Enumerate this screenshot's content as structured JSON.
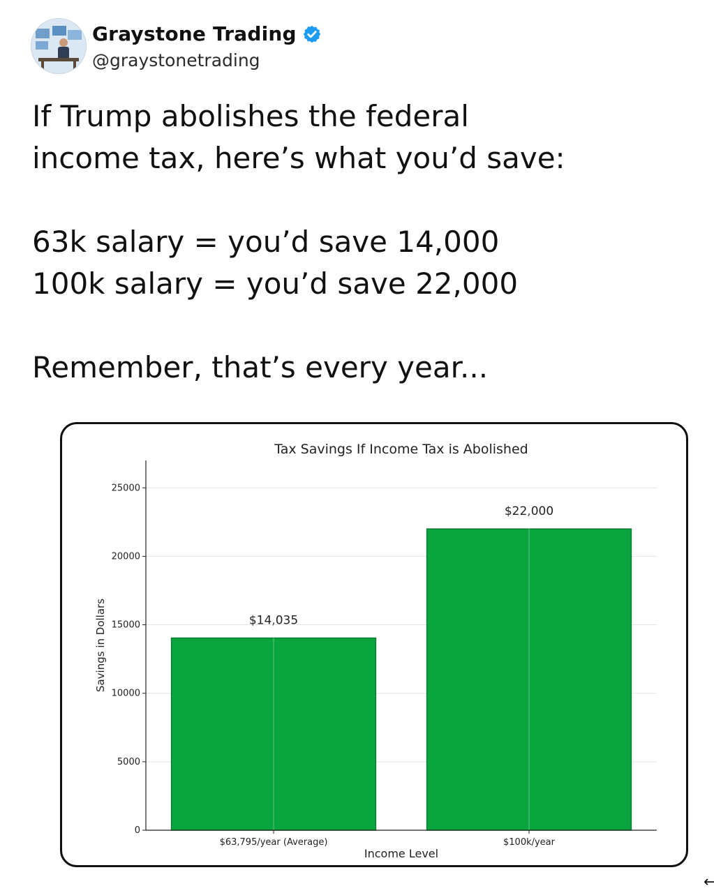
{
  "post": {
    "author": {
      "display_name": "Graystone Trading",
      "handle": "@graystonetrading",
      "verified_icon": "verified-badge-icon",
      "avatar_icon": "trader-at-desk-avatar"
    },
    "text_lines": [
      "If Trump abolishes the federal",
      "income tax, here’s what you’d save:",
      "",
      "63k salary = you’d save 14,000",
      "100k salary = you’d save 22,000",
      "",
      "Remember, that’s every year..."
    ]
  },
  "chart_data": {
    "type": "bar",
    "title": "Tax Savings If Income Tax is Abolished",
    "xlabel": "Income Level",
    "ylabel": "Savings in Dollars",
    "categories": [
      "$63,795/year (Average)",
      "$100k/year"
    ],
    "values": [
      14035,
      22000
    ],
    "data_labels": [
      "$14,035",
      "$22,000"
    ],
    "ylim": [
      0,
      27000
    ],
    "yticks": [
      0,
      5000,
      10000,
      15000,
      20000,
      25000
    ],
    "grid": true,
    "bar_color": "#0aa53f",
    "bar_edge_color": "#0b7a33"
  },
  "colors": {
    "verified": "#1d9bf0",
    "text": "#111111"
  }
}
